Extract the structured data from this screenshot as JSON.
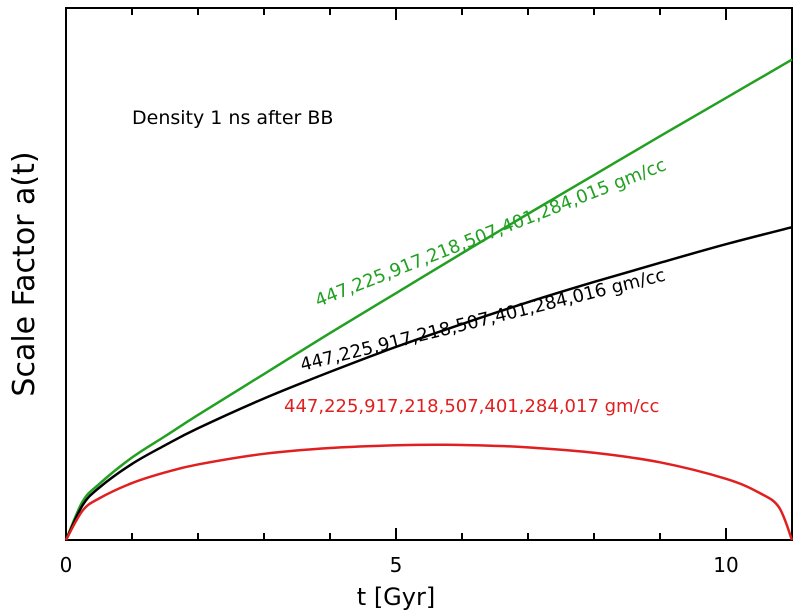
{
  "chart_data": {
    "type": "line",
    "title": "",
    "xlabel": "t [Gyr]",
    "ylabel": "Scale Factor a(t)",
    "xlim": [
      0,
      11
    ],
    "ylim": [
      0,
      1
    ],
    "x_ticks": [
      0,
      5,
      10
    ],
    "x_tick_labels": [
      "0",
      "5",
      "10"
    ],
    "y_tick_labels_shown": false,
    "grid": false,
    "annotation_text": "Density 1 ns after BB",
    "series": [
      {
        "name": "447,225,917,218,507,401,284,015 gm/cc",
        "color": "#22a022",
        "x": [
          0,
          0.25,
          0.5,
          1,
          1.5,
          2,
          3,
          4,
          5,
          6,
          7,
          8,
          9,
          10,
          11
        ],
        "y": [
          0,
          0.072,
          0.105,
          0.155,
          0.195,
          0.235,
          0.312,
          0.389,
          0.464,
          0.539,
          0.613,
          0.686,
          0.759,
          0.831,
          0.903
        ]
      },
      {
        "name": "447,225,917,218,507,401,284,016 gm/cc",
        "color": "#000000",
        "x": [
          0,
          0.25,
          0.5,
          1,
          1.5,
          2,
          3,
          4,
          5,
          6,
          7,
          8,
          9,
          10,
          11
        ],
        "y": [
          0,
          0.065,
          0.098,
          0.143,
          0.178,
          0.21,
          0.266,
          0.316,
          0.363,
          0.406,
          0.447,
          0.485,
          0.521,
          0.556,
          0.588
        ]
      },
      {
        "name": "447,225,917,218,507,401,284,017 gm/cc",
        "color": "#e02020",
        "x": [
          0,
          0.25,
          0.5,
          1,
          1.5,
          2,
          3,
          4,
          5,
          5.75,
          6.5,
          7,
          8,
          9,
          10,
          10.5,
          10.8,
          11
        ],
        "y": [
          0,
          0.055,
          0.078,
          0.107,
          0.127,
          0.142,
          0.162,
          0.173,
          0.178,
          0.179,
          0.177,
          0.174,
          0.164,
          0.146,
          0.115,
          0.089,
          0.062,
          0
        ]
      }
    ]
  }
}
